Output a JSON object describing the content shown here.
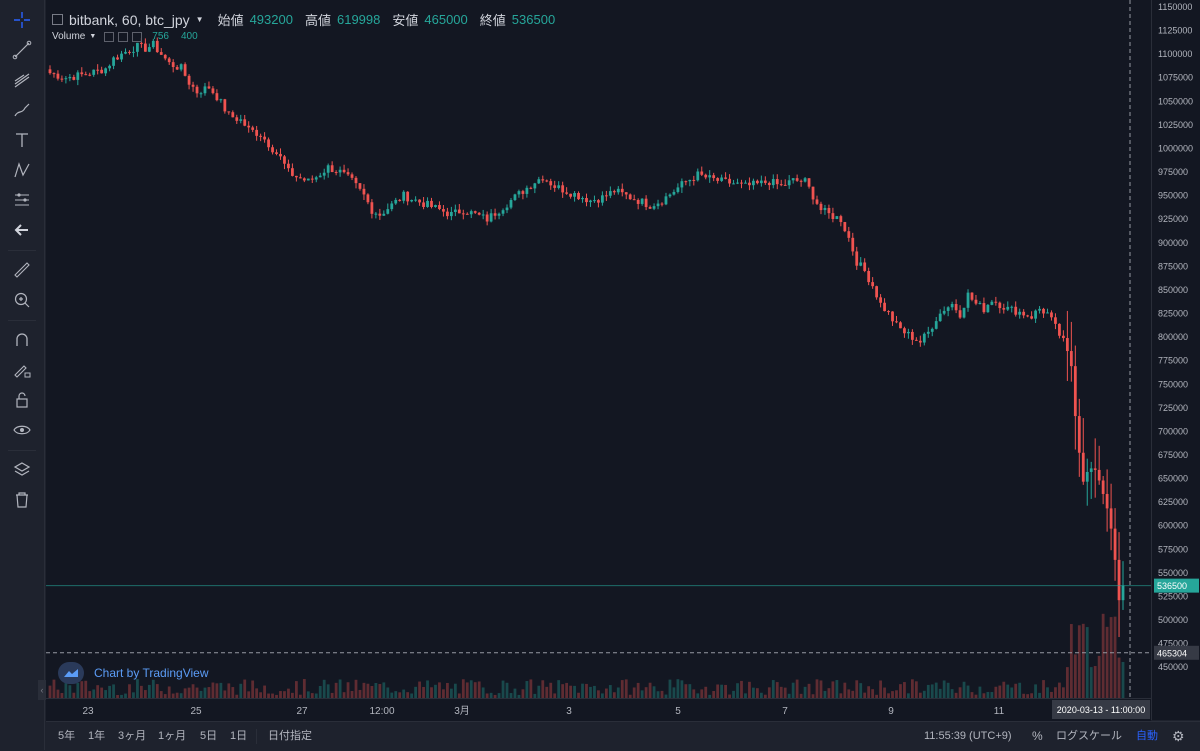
{
  "legend": {
    "symbol": "bitbank, 60, btc_jpy",
    "open_label": "始値",
    "open_value": "493200",
    "high_label": "高値",
    "high_value": "619998",
    "low_label": "安値",
    "low_value": "465000",
    "close_label": "終値",
    "close_value": "536500"
  },
  "volume": {
    "label": "Volume",
    "v1": "756",
    "v2": "400"
  },
  "watermark": "Chart by TradingView",
  "current_price": "536500",
  "crosshair_price": "465304",
  "crosshair_time": "2020-03-13 - 11:00:00",
  "colors": {
    "up": "#26a69a",
    "down": "#ef5350",
    "background": "#131722",
    "panel": "#1e222d",
    "accent": "#2962ff"
  },
  "toolbar": [
    "crosshair-icon",
    "trend-line-icon",
    "fib-icon",
    "brush-icon",
    "text-icon",
    "pattern-icon",
    "forecast-icon",
    "back-arrow-icon",
    "ruler-icon",
    "zoom-icon",
    "magnet-icon",
    "lock-drawing-icon",
    "lock-icon",
    "eye-icon",
    "layers-icon",
    "trash-icon"
  ],
  "bottom_bar": {
    "ranges": [
      "5年",
      "1年",
      "3ヶ月",
      "1ヶ月",
      "5日",
      "1日"
    ],
    "goto": "日付指定",
    "clock": "11:55:39 (UTC+9)",
    "percent": "%",
    "log": "ログスケール",
    "auto": "自動"
  },
  "chart_data": {
    "type": "candlestick",
    "price_ticks": [
      1150000,
      1125000,
      1100000,
      1075000,
      1050000,
      1025000,
      1000000,
      975000,
      950000,
      925000,
      900000,
      875000,
      850000,
      825000,
      800000,
      775000,
      750000,
      725000,
      700000,
      675000,
      650000,
      625000,
      600000,
      575000,
      550000,
      525000,
      500000,
      475000,
      450000
    ],
    "ylim": [
      437500,
      1150000
    ],
    "x_ticks": [
      "23",
      "25",
      "27",
      "12:00",
      "3月",
      "3",
      "5",
      "7",
      "9",
      "11"
    ],
    "close_path": [
      [
        0,
        1080000
      ],
      [
        4,
        1075000
      ],
      [
        8,
        1078000
      ],
      [
        12,
        1082000
      ],
      [
        14,
        1085000
      ],
      [
        16,
        1095000
      ],
      [
        20,
        1105000
      ],
      [
        22,
        1108000
      ],
      [
        24,
        1106000
      ],
      [
        26,
        1110000
      ],
      [
        28,
        1100000
      ],
      [
        30,
        1090000
      ],
      [
        33,
        1085000
      ],
      [
        35,
        1070000
      ],
      [
        37,
        1060000
      ],
      [
        40,
        1065000
      ],
      [
        42,
        1055000
      ],
      [
        45,
        1035000
      ],
      [
        48,
        1030000
      ],
      [
        50,
        1020000
      ],
      [
        53,
        1015000
      ],
      [
        55,
        1005000
      ],
      [
        58,
        990000
      ],
      [
        60,
        975000
      ],
      [
        62,
        970000
      ],
      [
        65,
        965000
      ],
      [
        67,
        970000
      ],
      [
        70,
        980000
      ],
      [
        73,
        975000
      ],
      [
        76,
        965000
      ],
      [
        79,
        950000
      ],
      [
        81,
        935000
      ],
      [
        83,
        930000
      ],
      [
        86,
        940000
      ],
      [
        89,
        950000
      ],
      [
        92,
        945000
      ],
      [
        95,
        940000
      ],
      [
        98,
        935000
      ],
      [
        101,
        930000
      ],
      [
        104,
        935000
      ],
      [
        107,
        930000
      ],
      [
        110,
        925000
      ],
      [
        113,
        935000
      ],
      [
        116,
        945000
      ],
      [
        119,
        955000
      ],
      [
        122,
        965000
      ],
      [
        124,
        970000
      ],
      [
        127,
        960000
      ],
      [
        130,
        955000
      ],
      [
        133,
        950000
      ],
      [
        136,
        945000
      ],
      [
        139,
        948000
      ],
      [
        142,
        955000
      ],
      [
        145,
        950000
      ],
      [
        148,
        945000
      ],
      [
        151,
        940000
      ],
      [
        154,
        945000
      ],
      [
        157,
        955000
      ],
      [
        160,
        965000
      ],
      [
        163,
        972000
      ],
      [
        166,
        968000
      ],
      [
        169,
        965000
      ],
      [
        172,
        963000
      ],
      [
        175,
        960000
      ],
      [
        178,
        962000
      ],
      [
        181,
        965000
      ],
      [
        184,
        960000
      ],
      [
        187,
        966000
      ],
      [
        190,
        965000
      ],
      [
        192,
        950000
      ],
      [
        194,
        935000
      ],
      [
        196,
        930000
      ],
      [
        199,
        925000
      ],
      [
        201,
        905000
      ],
      [
        203,
        880000
      ],
      [
        205,
        870000
      ],
      [
        207,
        855000
      ],
      [
        209,
        835000
      ],
      [
        211,
        825000
      ],
      [
        213,
        812000
      ],
      [
        215,
        805000
      ],
      [
        217,
        800000
      ],
      [
        219,
        795000
      ],
      [
        221,
        805000
      ],
      [
        223,
        820000
      ],
      [
        225,
        830000
      ],
      [
        227,
        835000
      ],
      [
        229,
        825000
      ],
      [
        231,
        845000
      ],
      [
        233,
        835000
      ],
      [
        235,
        830000
      ],
      [
        237,
        840000
      ],
      [
        239,
        835000
      ],
      [
        241,
        830000
      ],
      [
        243,
        828000
      ],
      [
        245,
        825000
      ],
      [
        247,
        822000
      ],
      [
        249,
        830000
      ],
      [
        251,
        825000
      ],
      [
        253,
        810000
      ],
      [
        255,
        795000
      ],
      [
        257,
        770000
      ],
      [
        258,
        720000
      ],
      [
        259,
        680000
      ],
      [
        260,
        650000
      ],
      [
        262,
        660000
      ],
      [
        264,
        650000
      ],
      [
        266,
        620000
      ],
      [
        267,
        600000
      ],
      [
        268,
        560000
      ],
      [
        269,
        520000
      ],
      [
        270,
        536500
      ]
    ],
    "volume_max": 1000
  }
}
